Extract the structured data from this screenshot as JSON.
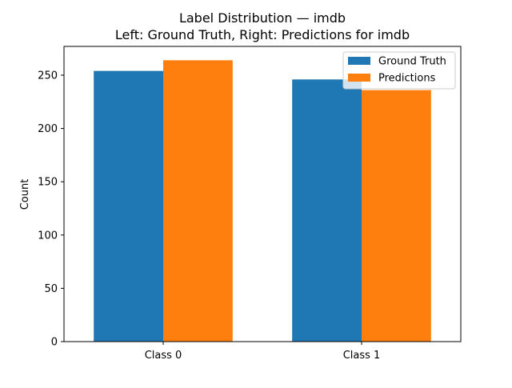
{
  "chart_data": {
    "type": "bar",
    "title": "Label Distribution — imdb",
    "subtitle": "Left: Ground Truth, Right: Predictions for imdb",
    "xlabel": "",
    "ylabel": "Count",
    "categories": [
      "Class 0",
      "Class 1"
    ],
    "series": [
      {
        "name": "Ground Truth",
        "color": "#1f77b4",
        "values": [
          254,
          246
        ]
      },
      {
        "name": "Predictions",
        "color": "#ff7f0e",
        "values": [
          264,
          236
        ]
      }
    ],
    "ylim": [
      0,
      277
    ],
    "yticks": [
      0,
      50,
      100,
      150,
      200,
      250
    ],
    "grid": false,
    "legend_position": "top-right"
  }
}
